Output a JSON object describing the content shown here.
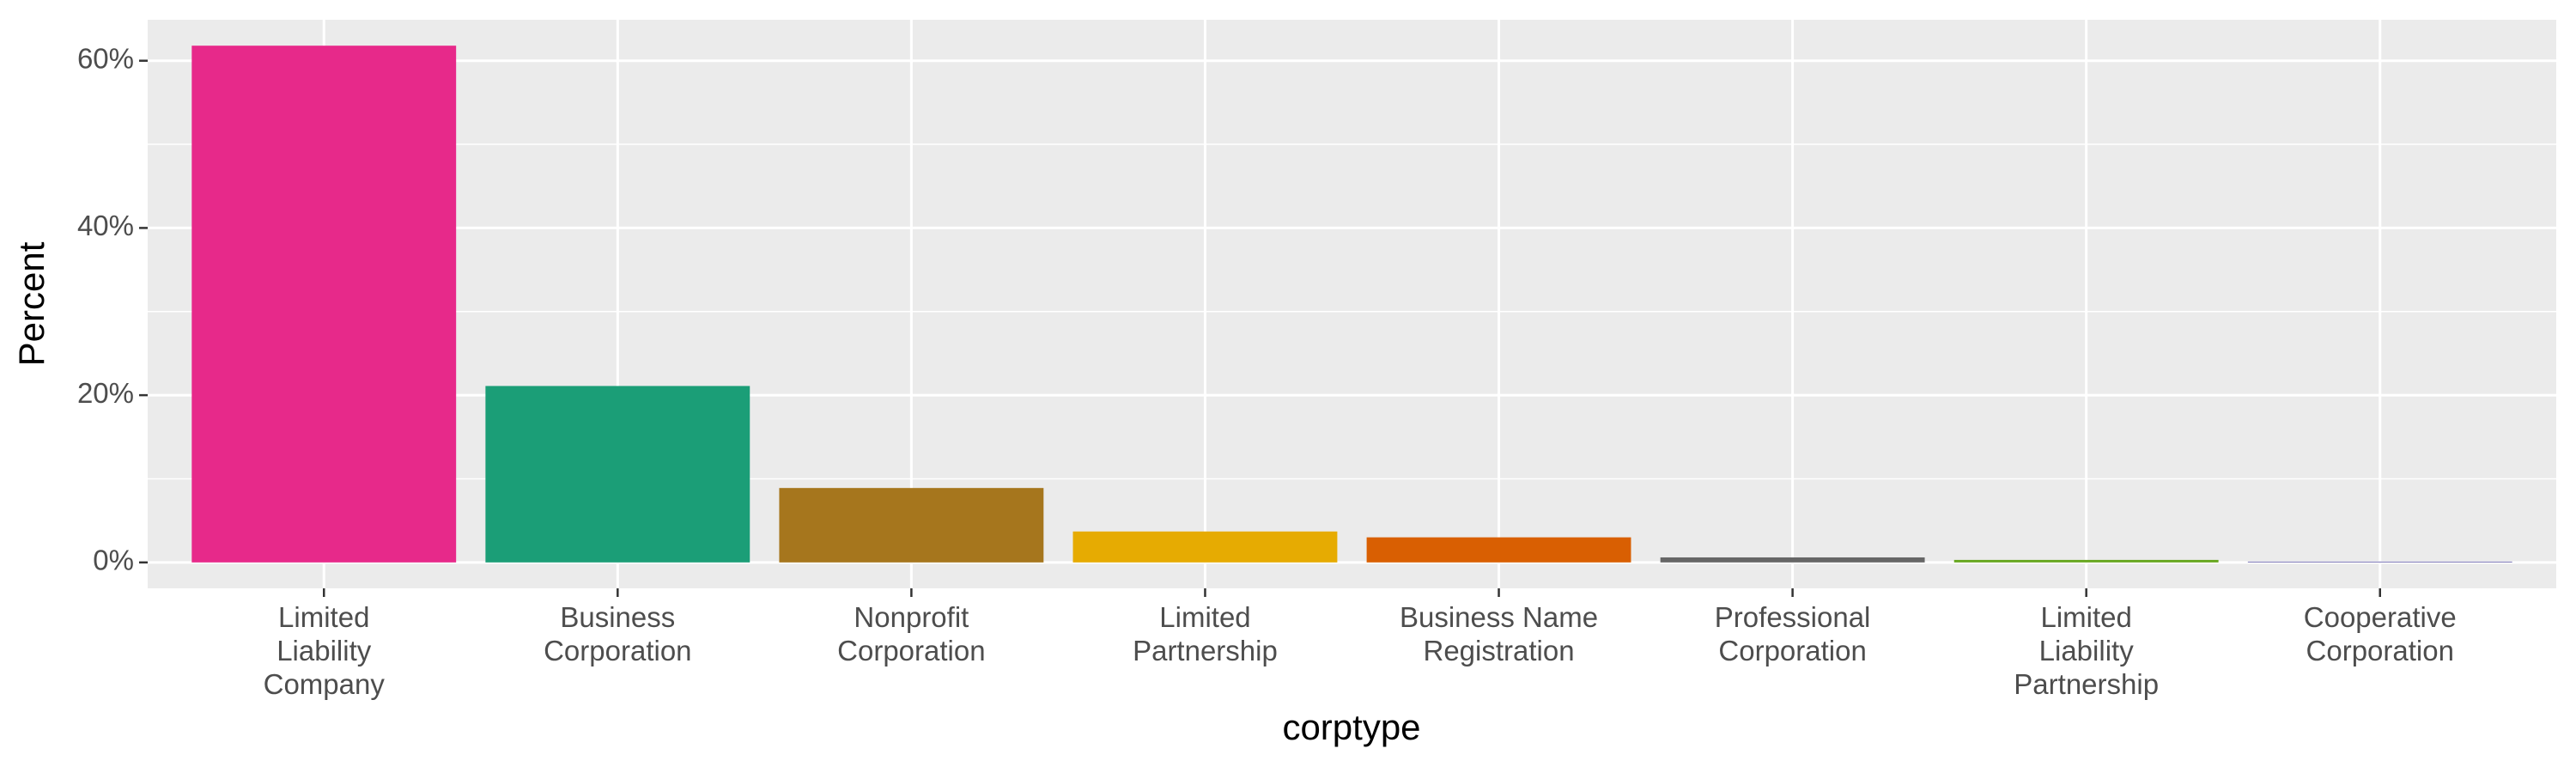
{
  "chart_data": {
    "type": "bar",
    "x_label": "corptype",
    "y_label": "Percent",
    "categories": [
      "Limited\nLiability\nCompany",
      "Business\nCorporation",
      "Nonprofit\nCorporation",
      "Limited\nPartnership",
      "Business Name\nRegistration",
      "Professional\nCorporation",
      "Limited\nLiability\nPartnership",
      "Cooperative\nCorporation"
    ],
    "values": [
      61.8,
      21.1,
      8.9,
      3.7,
      3.0,
      0.6,
      0.3,
      0.1
    ],
    "colors": [
      "#E7298A",
      "#1B9E77",
      "#A6761D",
      "#E6AB02",
      "#D95F02",
      "#666666",
      "#66A61E",
      "#7570B3"
    ],
    "ylim": [
      -3.1,
      64.9
    ],
    "yticks": [
      {
        "value": 0,
        "label": "0%"
      },
      {
        "value": 20,
        "label": "20%"
      },
      {
        "value": 40,
        "label": "40%"
      },
      {
        "value": 60,
        "label": "60%"
      }
    ],
    "y_minor_gridlines": [
      10,
      30,
      50
    ],
    "grid": true
  }
}
